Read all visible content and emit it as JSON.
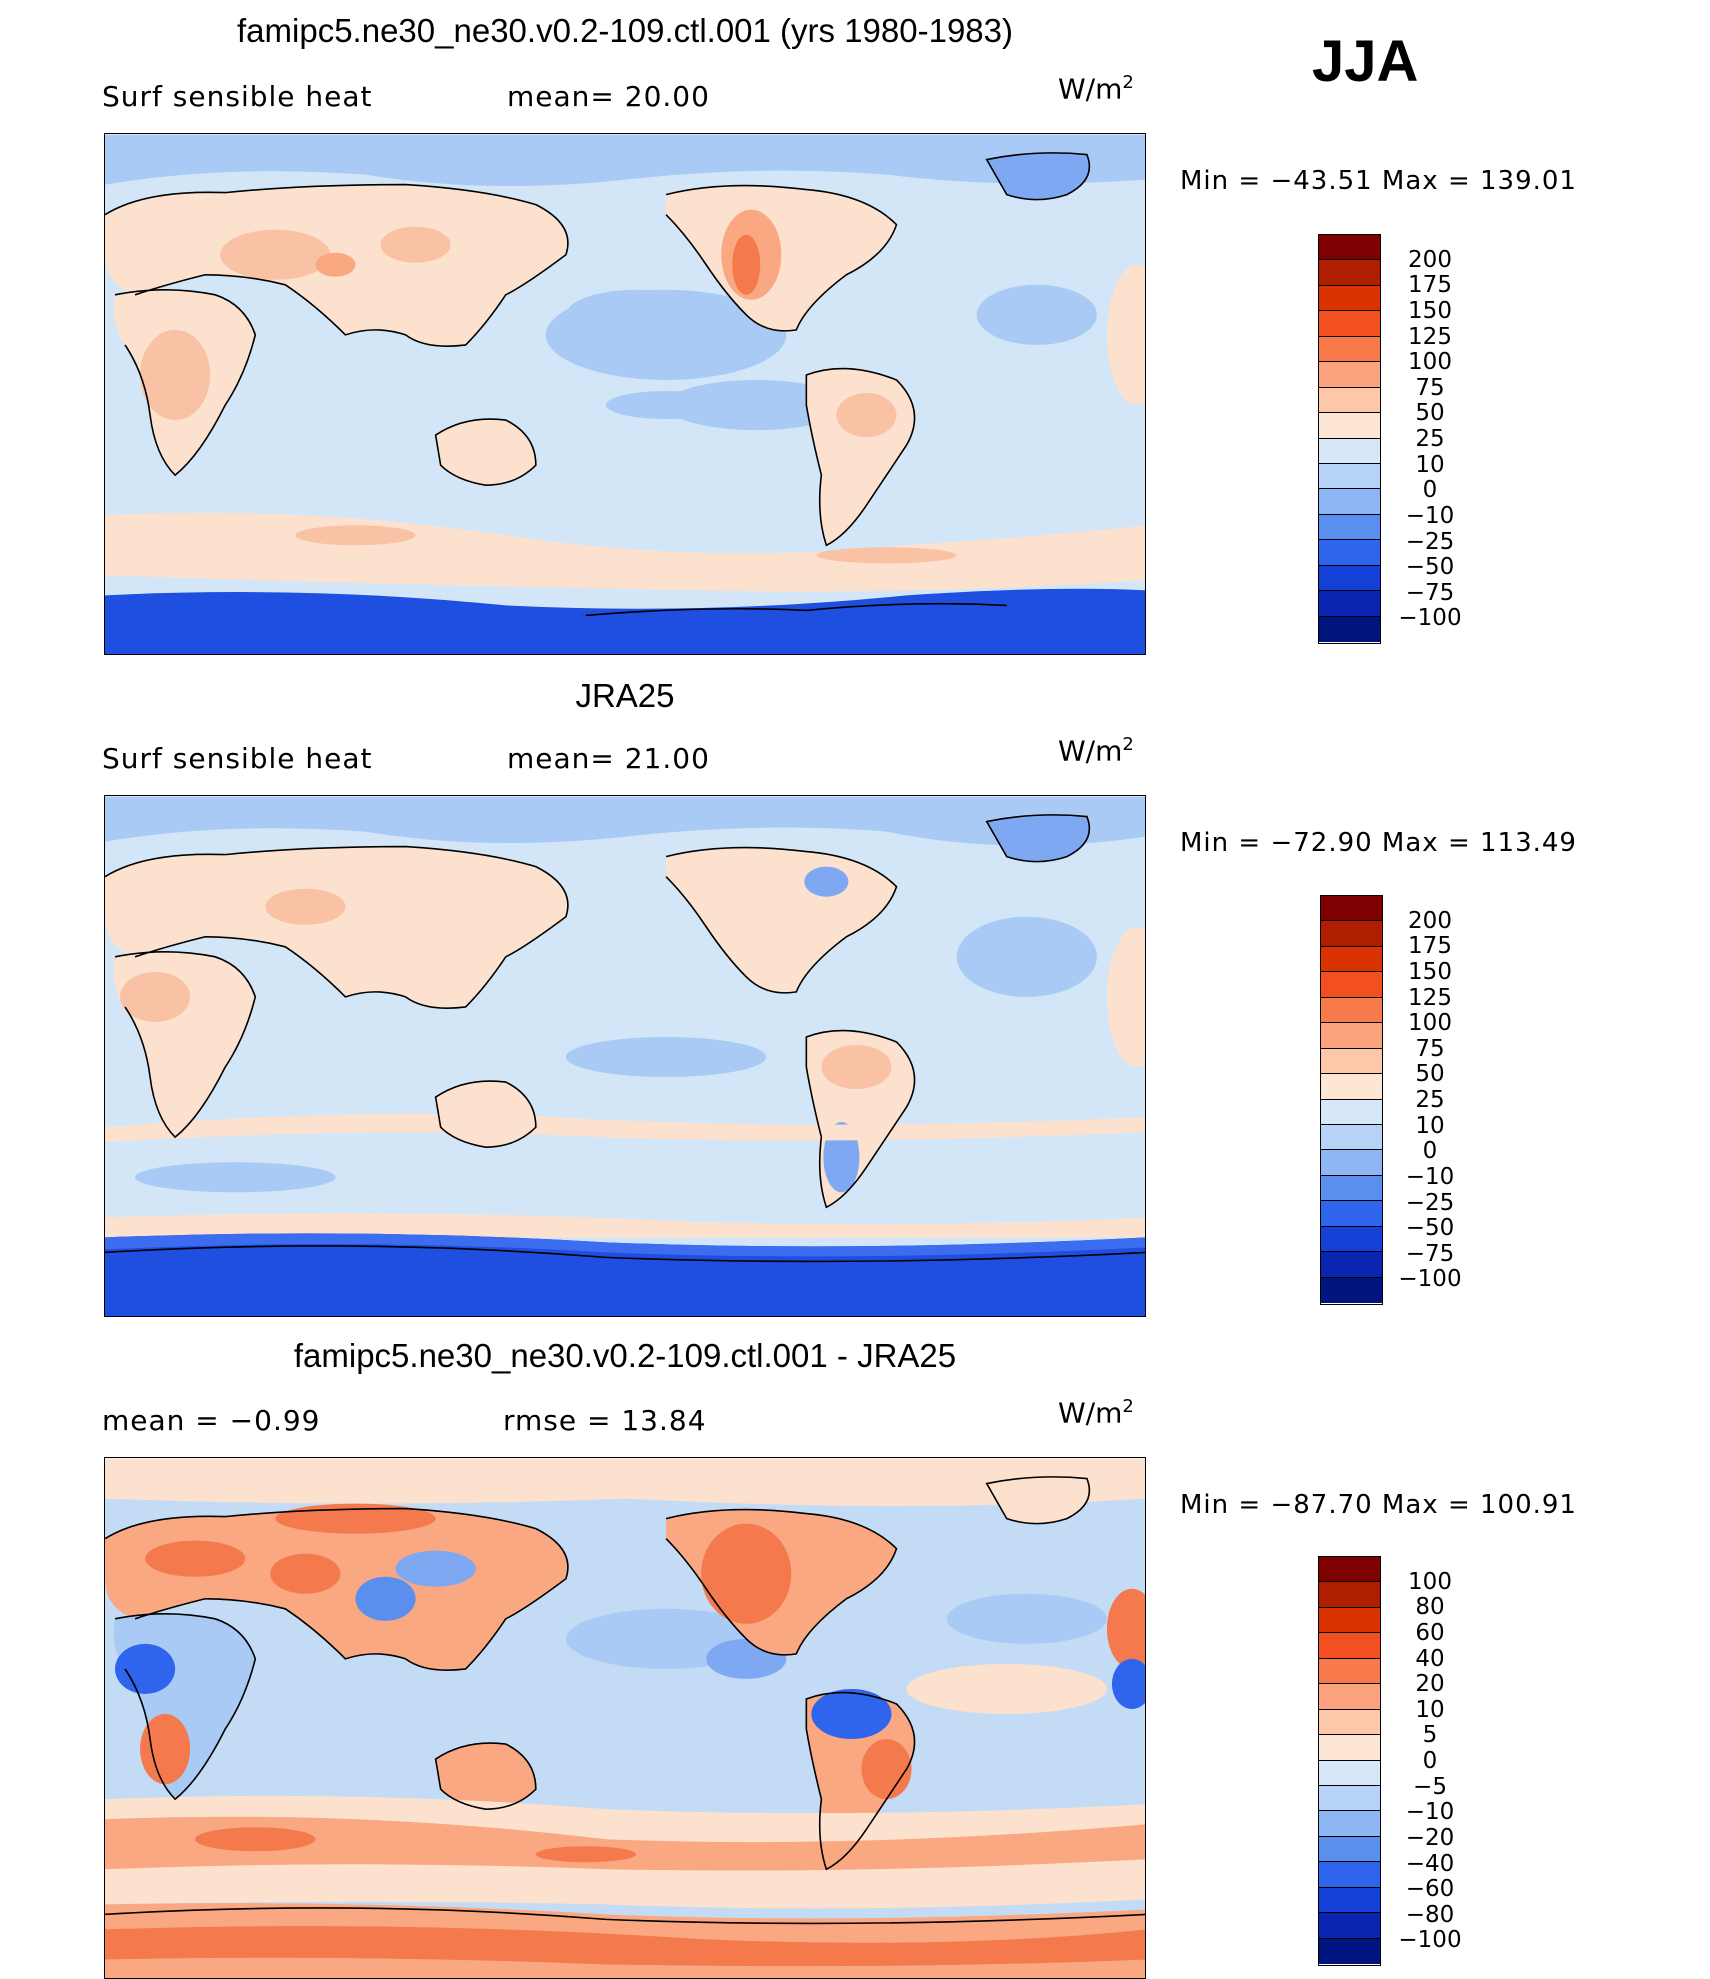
{
  "season": "JJA",
  "units_base": "W/m",
  "units_exp": "2",
  "colors": {
    "ocean_light": "#d2e6f7",
    "ocean_mid": "#a9caf5",
    "ocean_blue": "#7fa8f2",
    "deep_blue": "#1e4fe0",
    "land_peach": "#fde1cf",
    "land_salmon": "#f9a882",
    "land_orange": "#f47a4d"
  },
  "panels": [
    {
      "title": "famipc5.ne30_ne30.v0.2-109.ctl.001 (yrs 1980-1983)",
      "left_label": "Surf  sensible  heat",
      "mid_label": "mean=   20.00",
      "units": "W/m",
      "min_max": "Min  =  −43.51  Max  =  139.01",
      "colorbar": {
        "labels": [
          "200",
          "175",
          "150",
          "125",
          "100",
          "75",
          "50",
          "25",
          "10",
          "0",
          "−10",
          "−25",
          "−50",
          "−75",
          "−100"
        ],
        "colors": [
          "#7f0000",
          "#b01e00",
          "#d83300",
          "#f25020",
          "#f87a4a",
          "#fba37e",
          "#fdc7aa",
          "#fde6d4",
          "#d6e8f8",
          "#b6d2f7",
          "#8fb6f4",
          "#5a8ff0",
          "#2f64ec",
          "#1540d8",
          "#0a25b0",
          "#00157f"
        ]
      }
    },
    {
      "title": "JRA25",
      "left_label": "Surf  sensible  heat",
      "mid_label": "mean=   21.00",
      "units": "W/m",
      "min_max": "Min  =  −72.90  Max  =  113.49",
      "colorbar": {
        "labels": [
          "200",
          "175",
          "150",
          "125",
          "100",
          "75",
          "50",
          "25",
          "10",
          "0",
          "−10",
          "−25",
          "−50",
          "−75",
          "−100"
        ],
        "colors": [
          "#7f0000",
          "#b01e00",
          "#d83300",
          "#f25020",
          "#f87a4a",
          "#fba37e",
          "#fdc7aa",
          "#fde6d4",
          "#d6e8f8",
          "#b6d2f7",
          "#8fb6f4",
          "#5a8ff0",
          "#2f64ec",
          "#1540d8",
          "#0a25b0",
          "#00157f"
        ]
      }
    },
    {
      "title": "famipc5.ne30_ne30.v0.2-109.ctl.001 - JRA25",
      "left_label": "mean  =    −0.99",
      "mid_label": "rmse  =    13.84",
      "units": "W/m",
      "min_max": "Min  =  −87.70  Max  =  100.91",
      "colorbar": {
        "labels": [
          "100",
          "80",
          "60",
          "40",
          "20",
          "10",
          "5",
          "0",
          "−5",
          "−10",
          "−20",
          "−40",
          "−60",
          "−80",
          "−100"
        ],
        "colors": [
          "#7f0000",
          "#b01e00",
          "#d83300",
          "#f25020",
          "#f87a4a",
          "#fba37e",
          "#fdc7aa",
          "#fde6d4",
          "#d6e8f8",
          "#b6d2f7",
          "#8fb6f4",
          "#5a8ff0",
          "#2f64ec",
          "#1540d8",
          "#0a25b0",
          "#00157f"
        ]
      }
    }
  ],
  "chart_data": [
    {
      "type": "heatmap",
      "title": "famipc5.ne30_ne30.v0.2-109.ctl.001 (yrs 1980-1983)",
      "subtitle": "Surf  sensible  heat",
      "mean": 20.0,
      "min": -43.51,
      "max": 139.01,
      "units": "W/m2",
      "levels": [
        -100,
        -75,
        -50,
        -25,
        -10,
        0,
        10,
        25,
        50,
        75,
        100,
        125,
        150,
        175,
        200
      ]
    },
    {
      "type": "heatmap",
      "title": "JRA25",
      "subtitle": "Surf  sensible  heat",
      "mean": 21.0,
      "min": -72.9,
      "max": 113.49,
      "units": "W/m2",
      "levels": [
        -100,
        -75,
        -50,
        -25,
        -10,
        0,
        10,
        25,
        50,
        75,
        100,
        125,
        150,
        175,
        200
      ]
    },
    {
      "type": "heatmap",
      "title": "famipc5.ne30_ne30.v0.2-109.ctl.001 - JRA25",
      "mean": -0.99,
      "rmse": 13.84,
      "min": -87.7,
      "max": 100.91,
      "units": "W/m2",
      "levels": [
        -100,
        -80,
        -60,
        -40,
        -20,
        -10,
        -5,
        0,
        5,
        10,
        20,
        40,
        60,
        80,
        100
      ]
    }
  ]
}
